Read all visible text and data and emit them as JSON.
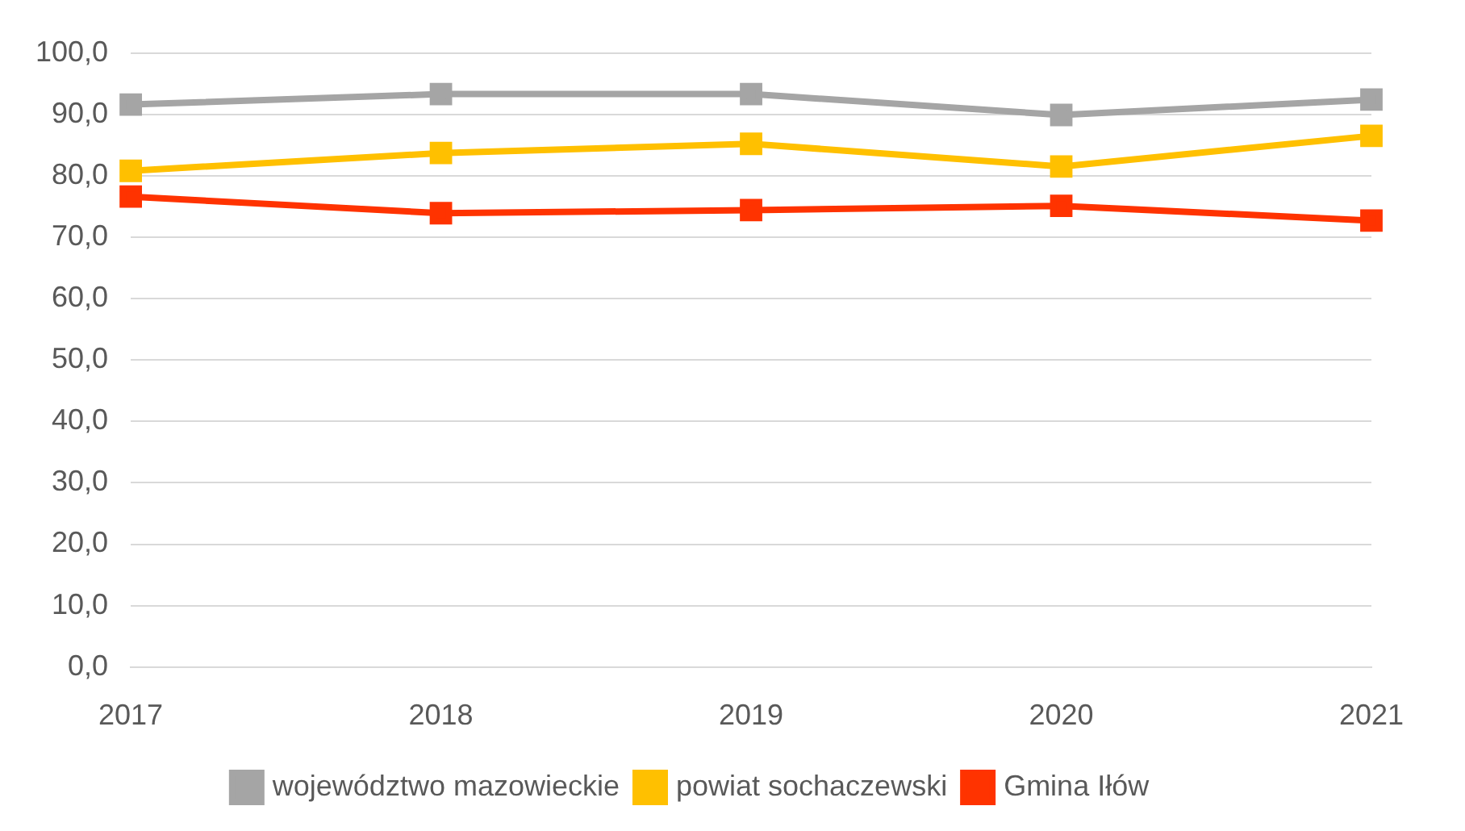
{
  "chart_data": {
    "type": "line",
    "categories": [
      "2017",
      "2018",
      "2019",
      "2020",
      "2021"
    ],
    "series": [
      {
        "name": "województwo mazowieckie",
        "color": "#a5a5a5",
        "values": [
          91.6,
          93.3,
          93.3,
          89.9,
          92.4
        ]
      },
      {
        "name": "powiat sochaczewski",
        "color": "#ffc000",
        "values": [
          80.8,
          83.7,
          85.2,
          81.5,
          86.5
        ]
      },
      {
        "name": "Gmina Iłów",
        "color": "#ff3300",
        "values": [
          76.6,
          73.9,
          74.4,
          75.1,
          72.7
        ]
      }
    ],
    "ylim": [
      0,
      100
    ],
    "yticks": [
      {
        "value": 0,
        "label": "0,0"
      },
      {
        "value": 10,
        "label": "10,0"
      },
      {
        "value": 20,
        "label": "20,0"
      },
      {
        "value": 30,
        "label": "30,0"
      },
      {
        "value": 40,
        "label": "40,0"
      },
      {
        "value": 50,
        "label": "50,0"
      },
      {
        "value": 60,
        "label": "60,0"
      },
      {
        "value": 70,
        "label": "70,0"
      },
      {
        "value": 80,
        "label": "80,0"
      },
      {
        "value": 90,
        "label": "90,0"
      },
      {
        "value": 100,
        "label": "100,0"
      }
    ],
    "grid": "y",
    "legend": "bottom",
    "marker": "square",
    "line_style": "solid"
  }
}
